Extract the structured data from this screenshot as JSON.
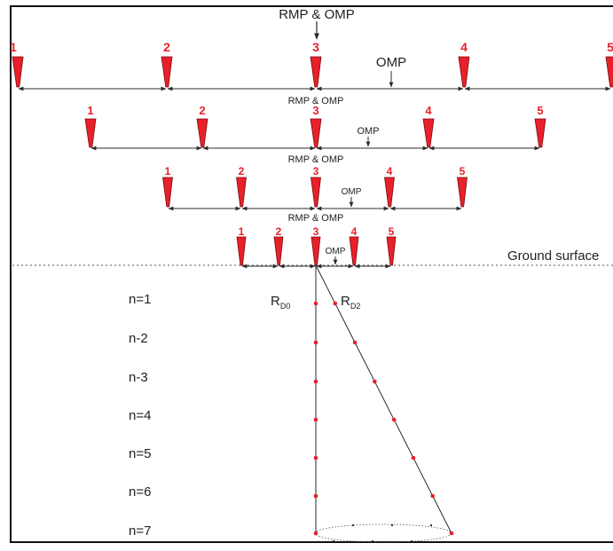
{
  "colors": {
    "electrode": "#e8202a",
    "electrode_edge": "#7a0a0e",
    "line": "#2b2b2b",
    "point": "#e8202a",
    "ground_line": "#555555"
  },
  "top_label": "RMP & OMP",
  "ground_surface_label": "Ground surface",
  "rows": [
    {
      "midpoint_label": "",
      "omp_label": "OMP",
      "electrodes": [
        "1",
        "2",
        "3",
        "4",
        "5"
      ]
    },
    {
      "midpoint_label": "RMP & OMP",
      "omp_label": "OMP",
      "electrodes": [
        "1",
        "2",
        "3",
        "4",
        "5"
      ]
    },
    {
      "midpoint_label": "RMP & OMP",
      "omp_label": "OMP",
      "electrodes": [
        "1",
        "2",
        "3",
        "4",
        "5"
      ]
    },
    {
      "midpoint_label": "RMP & OMP",
      "omp_label": "OMP",
      "electrodes": [
        "1",
        "2",
        "3",
        "4",
        "5"
      ]
    }
  ],
  "depth_labels": [
    "n=1",
    "n-2",
    "n-3",
    "n=4",
    "n=5",
    "n=6",
    "n=7"
  ],
  "rd0": {
    "main": "R",
    "sub": "D0"
  },
  "rd2": {
    "main": "R",
    "sub": "D2"
  }
}
